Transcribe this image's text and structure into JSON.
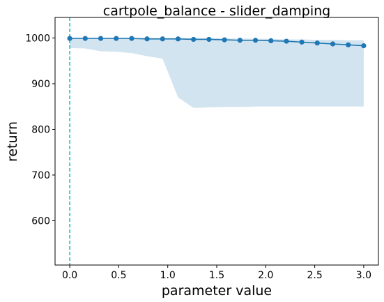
{
  "chart_data": {
    "type": "line",
    "title": "cartpole_balance - slider_damping",
    "xlabel": "parameter value",
    "ylabel": "return",
    "xlim": [
      -0.15,
      3.15
    ],
    "ylim": [
      503,
      1045
    ],
    "xticks": [
      0.0,
      0.5,
      1.0,
      1.5,
      2.0,
      2.5,
      3.0
    ],
    "xtick_labels": [
      "0.0",
      "0.5",
      "1.0",
      "1.5",
      "2.0",
      "2.5",
      "3.0"
    ],
    "yticks": [
      600,
      700,
      800,
      900,
      1000
    ],
    "ytick_labels": [
      "600",
      "700",
      "800",
      "900",
      "1000"
    ],
    "grid": false,
    "reference_line": {
      "x": 0.0,
      "style": "dashed",
      "color": "#17becf"
    },
    "series": [
      {
        "color": "#1f77b4",
        "x": [
          0.0,
          0.158,
          0.316,
          0.474,
          0.632,
          0.789,
          0.947,
          1.105,
          1.263,
          1.421,
          1.579,
          1.737,
          1.895,
          2.053,
          2.211,
          2.368,
          2.526,
          2.684,
          2.842,
          3.0
        ],
        "y": [
          999,
          999,
          999,
          999,
          999,
          998,
          998,
          998,
          997,
          997,
          996,
          995,
          995,
          994,
          993,
          991,
          989,
          987,
          985,
          983
        ],
        "lower": [
          978,
          977,
          971,
          970,
          967,
          960,
          955,
          870,
          847,
          848,
          849,
          849,
          850,
          850,
          850,
          850,
          850,
          850,
          850,
          850
        ],
        "upper": [
          1000,
          1000,
          1000,
          1000,
          1000,
          1000,
          1000,
          1000,
          1000,
          1000,
          999,
          999,
          998,
          998,
          997,
          997,
          996,
          996,
          995,
          995
        ]
      }
    ]
  }
}
